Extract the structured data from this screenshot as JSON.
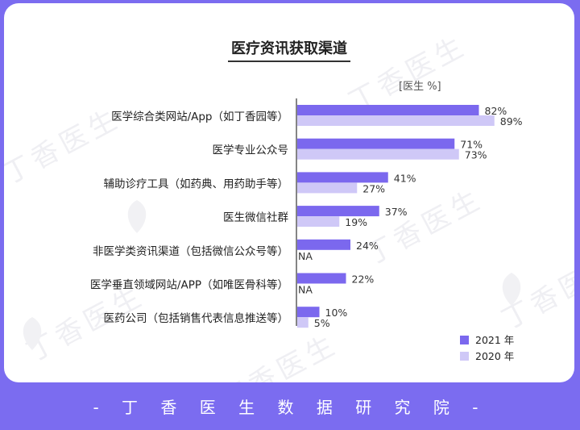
{
  "chart_data": {
    "type": "bar",
    "title": "医疗资讯获取渠道",
    "unit_label": "[医生 %]",
    "categories": [
      "医学综合类网站/App（如丁香园等）",
      "医学专业公众号",
      "辅助诊疗工具（如药典、用药助手等）",
      "医生微信社群",
      "非医学类资讯渠道（包括微信公众号等）",
      "医学垂直领域网站/APP（如唯医骨科等）",
      "医药公司（包括销售代表信息推送等）"
    ],
    "series": [
      {
        "name": "2021 年",
        "color": "#7B68EE",
        "values": [
          82,
          71,
          41,
          37,
          24,
          22,
          10
        ]
      },
      {
        "name": "2020 年",
        "color": "#CFC8F7",
        "values": [
          89,
          73,
          27,
          19,
          null,
          null,
          5
        ]
      }
    ],
    "missing_label": "NA",
    "value_suffix": "%",
    "xlim": [
      0,
      100
    ],
    "legend_position": "bottom-right",
    "grid": false
  },
  "watermark": "丁香医生",
  "footer": "- 丁 香 医 生 数 据 研 究 院 -"
}
